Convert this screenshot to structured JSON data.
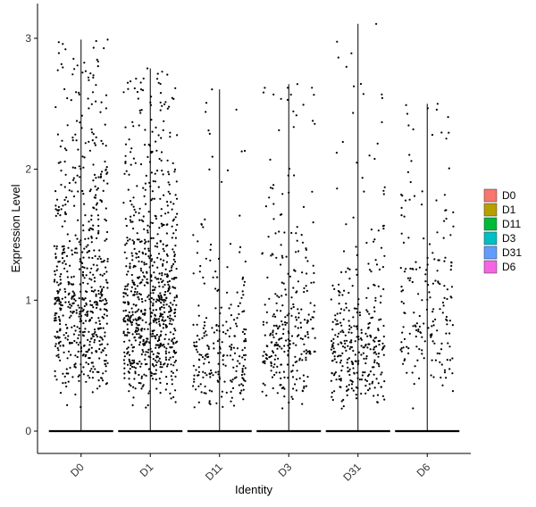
{
  "chart_data": {
    "type": "scatter",
    "subtype": "violin-jitter",
    "title": "",
    "xlabel": "Identity",
    "ylabel": "Expression Level",
    "ylim": [
      -0.17,
      3.12
    ],
    "yticks": [
      0,
      1,
      2,
      3
    ],
    "grid": false,
    "legend_position": "right",
    "categories": [
      "D0",
      "D1",
      "D11",
      "D3",
      "D31",
      "D6"
    ],
    "series": [
      {
        "name": "D0",
        "color": "#F8766D",
        "n_zero_cells": 1600,
        "n_expressing_cells": 640,
        "median_nonzero": 1.05,
        "max": 2.99
      },
      {
        "name": "D1",
        "color": "#B79F00",
        "n_zero_cells": 1600,
        "n_expressing_cells": 780,
        "median_nonzero": 0.95,
        "max": 2.77
      },
      {
        "name": "D11",
        "color": "#00BA38",
        "n_zero_cells": 1200,
        "n_expressing_cells": 240,
        "median_nonzero": 0.62,
        "max": 2.61
      },
      {
        "name": "D3",
        "color": "#00BFC4",
        "n_zero_cells": 1300,
        "n_expressing_cells": 290,
        "median_nonzero": 0.78,
        "max": 2.65
      },
      {
        "name": "D31",
        "color": "#619CFF",
        "n_zero_cells": 1300,
        "n_expressing_cells": 330,
        "median_nonzero": 0.65,
        "max": 3.11
      },
      {
        "name": "D6",
        "color": "#F564E3",
        "n_zero_cells": 900,
        "n_expressing_cells": 190,
        "median_nonzero": 0.95,
        "max": 2.5
      }
    ]
  }
}
